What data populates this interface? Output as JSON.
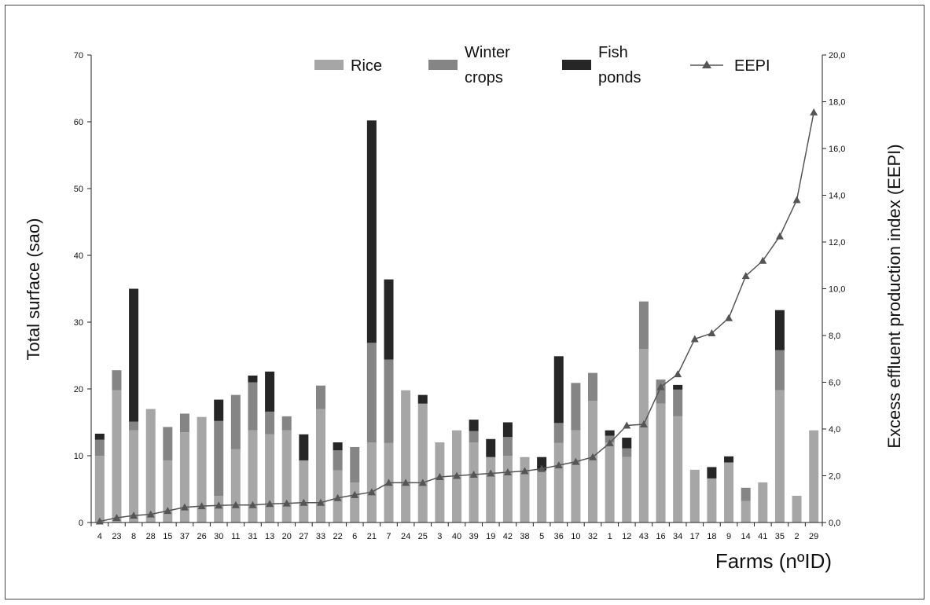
{
  "chart_data": {
    "type": "bar",
    "stacked": true,
    "categories": [
      "4",
      "23",
      "8",
      "28",
      "15",
      "37",
      "26",
      "30",
      "11",
      "31",
      "13",
      "20",
      "27",
      "33",
      "22",
      "6",
      "21",
      "7",
      "24",
      "25",
      "3",
      "40",
      "39",
      "19",
      "42",
      "38",
      "5",
      "36",
      "10",
      "32",
      "1",
      "12",
      "43",
      "16",
      "34",
      "17",
      "18",
      "9",
      "14",
      "41",
      "35",
      "2",
      "29"
    ],
    "series": [
      {
        "name": "Rice",
        "color": "#a6a6a6",
        "values": [
          10,
          19.8,
          13.8,
          17,
          9.3,
          13.5,
          15.8,
          4,
          11,
          13.8,
          13.2,
          13.8,
          9.3,
          17,
          7.8,
          6,
          12,
          11.9,
          19.8,
          17.8,
          12,
          13.8,
          12,
          9.8,
          10,
          9.8,
          7.8,
          11.9,
          13.8,
          18.2,
          12,
          9.8,
          26,
          17.8,
          15.9,
          7.9,
          6.6,
          9,
          3.2,
          6,
          19.8,
          4,
          13.8
        ]
      },
      {
        "name": "Winter crops",
        "color": "#858585",
        "values": [
          2.4,
          3,
          1.3,
          0,
          5,
          2.8,
          0,
          11.2,
          8.1,
          7.2,
          3.4,
          2.1,
          0,
          3.5,
          3,
          5.3,
          14.9,
          12.5,
          0,
          0,
          0,
          0,
          1.7,
          0,
          2.8,
          0,
          0,
          3,
          7.1,
          4.2,
          1,
          1.3,
          7.1,
          3.6,
          4,
          0,
          0,
          0,
          2,
          0,
          6,
          0,
          0
        ]
      },
      {
        "name": "Fish ponds",
        "color": "#262626",
        "values": [
          0.9,
          0,
          19.9,
          0,
          0,
          0,
          0,
          3.2,
          0,
          1,
          6,
          0,
          3.9,
          0,
          1.2,
          0,
          33.3,
          12,
          0,
          1.3,
          0,
          0,
          1.7,
          2.7,
          2.2,
          0,
          2,
          10,
          0,
          0,
          0.8,
          1.6,
          0,
          0,
          0.7,
          0,
          1.7,
          0.9,
          0,
          0,
          6,
          0,
          0
        ]
      }
    ],
    "line": {
      "name": "EEPI",
      "color": "#555555",
      "axis": "right",
      "values": [
        0.05,
        0.2,
        0.3,
        0.35,
        0.5,
        0.65,
        0.7,
        0.73,
        0.75,
        0.75,
        0.8,
        0.82,
        0.85,
        0.85,
        1.05,
        1.18,
        1.3,
        1.7,
        1.7,
        1.7,
        1.95,
        2,
        2.05,
        2.1,
        2.15,
        2.2,
        2.3,
        2.45,
        2.6,
        2.8,
        3.4,
        4.15,
        4.2,
        5.8,
        6.35,
        7.85,
        8.1,
        8.75,
        10.55,
        11.2,
        12.25,
        13.8,
        17.55
      ]
    },
    "y_left": {
      "label": "Total surface (sao)",
      "min": 0,
      "max": 70,
      "ticks": [
        "0",
        "10",
        "20",
        "30",
        "40",
        "50",
        "60",
        "70"
      ]
    },
    "y_right": {
      "label": "Excess effluent production index (EEPI)",
      "min": 0,
      "max": 20,
      "ticks": [
        "0,0",
        "2,0",
        "4,0",
        "6,0",
        "8,0",
        "10,0",
        "12,0",
        "14,0",
        "16,0",
        "18,0",
        "20,0"
      ]
    },
    "xlabel": "Farms (nºID)",
    "legend": {
      "placement": "top",
      "items": [
        {
          "lines": [
            "Rice"
          ],
          "color": "#a6a6a6",
          "kind": "bar"
        },
        {
          "lines": [
            "Winter",
            "crops"
          ],
          "color": "#858585",
          "kind": "bar"
        },
        {
          "lines": [
            "Fish",
            "ponds"
          ],
          "color": "#262626",
          "kind": "bar"
        },
        {
          "lines": [
            "EEPI"
          ],
          "color": "#555555",
          "kind": "line"
        }
      ]
    },
    "grid": false
  }
}
